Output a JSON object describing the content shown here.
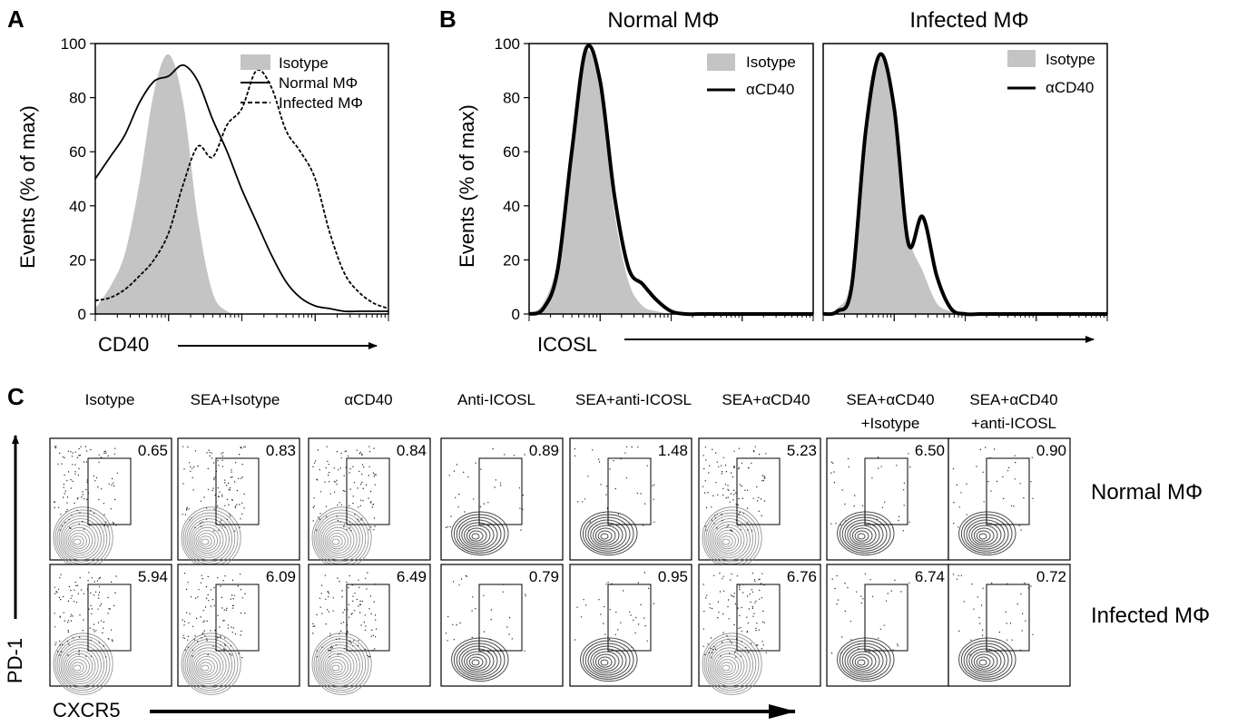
{
  "panel_letters": {
    "a": "A",
    "b": "B",
    "c": "C"
  },
  "colors": {
    "isotype_fill": "#c4c4c4",
    "line": "#000000",
    "contour": "#6e6e6e",
    "background": "#ffffff"
  },
  "chart_data": [
    {
      "panel": "A",
      "type": "area",
      "xlabel": "CD40",
      "ylabel": "Events (% of max)",
      "x_scale": "log",
      "ylim": [
        0,
        100
      ],
      "yticks": [
        0,
        20,
        40,
        60,
        80,
        100
      ],
      "legend": {
        "placement": "top-right",
        "entries": [
          "Isotype",
          "Normal MΦ",
          "Infected MΦ"
        ]
      },
      "x": [
        0,
        5,
        10,
        15,
        20,
        25,
        30,
        35,
        40,
        45,
        50,
        55,
        60,
        65,
        70,
        75,
        80,
        85,
        90,
        95,
        100
      ],
      "series": [
        {
          "name": "Isotype",
          "style": "filled",
          "values": [
            2,
            10,
            22,
            48,
            82,
            96,
            78,
            35,
            8,
            1,
            0,
            0,
            0,
            0,
            0,
            0,
            0,
            0,
            0,
            0,
            0
          ]
        },
        {
          "name": "Normal MΦ",
          "style": "solid",
          "values": [
            50,
            58,
            66,
            78,
            86,
            88,
            92,
            86,
            72,
            60,
            46,
            34,
            22,
            12,
            6,
            3,
            2,
            1,
            1,
            1,
            1
          ]
        },
        {
          "name": "Infected MΦ",
          "style": "dashed",
          "values": [
            5,
            6,
            9,
            14,
            20,
            30,
            48,
            62,
            58,
            70,
            76,
            90,
            84,
            68,
            60,
            50,
            30,
            15,
            8,
            4,
            2
          ]
        }
      ]
    },
    {
      "panel": "B",
      "title": "Normal MΦ",
      "type": "area",
      "xlabel": "ICOSL",
      "ylabel": "Events (% of max)",
      "x_scale": "log",
      "ylim": [
        0,
        100
      ],
      "yticks": [
        0,
        20,
        40,
        60,
        80,
        100
      ],
      "legend": {
        "placement": "top-right",
        "entries": [
          "Isotype",
          "αCD40"
        ]
      },
      "x": [
        0,
        5,
        10,
        15,
        20,
        25,
        30,
        35,
        40,
        45,
        50,
        55,
        60,
        65,
        70,
        75,
        80,
        85,
        90,
        95,
        100
      ],
      "series": [
        {
          "name": "Isotype",
          "style": "filled",
          "values": [
            0,
            4,
            20,
            64,
            97,
            82,
            38,
            12,
            3,
            1,
            0,
            0,
            0,
            0,
            0,
            0,
            0,
            0,
            0,
            0,
            0
          ]
        },
        {
          "name": "αCD40",
          "style": "thick",
          "values": [
            0,
            2,
            16,
            60,
            98,
            86,
            44,
            17,
            11,
            5,
            1,
            0,
            0,
            0,
            0,
            0,
            0,
            0,
            0,
            0,
            0
          ]
        }
      ]
    },
    {
      "panel": "B",
      "title": "Infected MΦ",
      "type": "area",
      "x_scale": "log",
      "ylim": [
        0,
        100
      ],
      "legend": {
        "placement": "top-right",
        "entries": [
          "Isotype",
          "αCD40"
        ]
      },
      "x": [
        0,
        5,
        10,
        15,
        20,
        25,
        30,
        35,
        40,
        45,
        50,
        55,
        60,
        65,
        70,
        75,
        80,
        85,
        90,
        95,
        100
      ],
      "series": [
        {
          "name": "Isotype",
          "style": "filled",
          "values": [
            0,
            2,
            14,
            72,
            95,
            72,
            30,
            16,
            4,
            1,
            0,
            0,
            0,
            0,
            0,
            0,
            0,
            0,
            0,
            0,
            0
          ]
        },
        {
          "name": "αCD40",
          "style": "thick",
          "values": [
            0,
            1,
            10,
            68,
            96,
            76,
            26,
            36,
            14,
            2,
            0,
            0,
            0,
            0,
            0,
            0,
            0,
            0,
            0,
            0,
            0
          ]
        }
      ]
    },
    {
      "panel": "C",
      "type": "scatter",
      "xlabel": "CXCR5",
      "ylabel": "PD-1",
      "conditions": [
        [
          "Isotype"
        ],
        [
          "SEA+Isotype"
        ],
        [
          "αCD40"
        ],
        [
          "Anti-ICOSL"
        ],
        [
          "SEA+anti-ICOSL"
        ],
        [
          "SEA+αCD40"
        ],
        [
          "SEA+αCD40",
          "+Isotype"
        ],
        [
          "SEA+αCD40",
          "+anti-ICOSL"
        ]
      ],
      "rows": [
        {
          "name": "Normal MΦ",
          "values": [
            "0.65",
            "0.83",
            "0.84",
            "0.89",
            "1.48",
            "5.23",
            "6.50",
            "0.90"
          ]
        },
        {
          "name": "Infected MΦ",
          "values": [
            "5.94",
            "6.09",
            "6.49",
            "0.79",
            "0.95",
            "6.76",
            "6.74",
            "0.72"
          ]
        }
      ]
    }
  ]
}
